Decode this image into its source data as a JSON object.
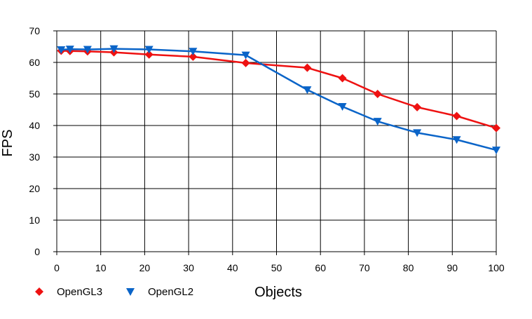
{
  "chart_data": {
    "type": "line",
    "xlabel": "Objects",
    "ylabel": "FPS",
    "xlim": [
      0,
      100
    ],
    "ylim": [
      0,
      70
    ],
    "x_ticks": [
      0,
      10,
      20,
      30,
      40,
      50,
      60,
      70,
      80,
      90,
      100
    ],
    "y_ticks": [
      0,
      10,
      20,
      30,
      40,
      50,
      60,
      70
    ],
    "grid": true,
    "legend_position": "bottom-left",
    "series": [
      {
        "name": "OpenGL3",
        "color": "#ee1111",
        "marker": "diamond",
        "x": [
          1,
          3,
          7,
          13,
          21,
          31,
          43,
          57,
          65,
          73,
          82,
          91,
          100
        ],
        "y": [
          63.7,
          63.6,
          63.5,
          63.2,
          62.5,
          61.8,
          59.8,
          58.3,
          55.0,
          50.0,
          45.8,
          43.0,
          39.2
        ]
      },
      {
        "name": "OpenGL2",
        "color": "#0a64c8",
        "marker": "triangle-down",
        "x": [
          1,
          3,
          7,
          13,
          21,
          31,
          43,
          57,
          65,
          73,
          82,
          91,
          100
        ],
        "y": [
          64.0,
          64.2,
          64.1,
          64.3,
          64.1,
          63.5,
          62.3,
          51.3,
          46.0,
          41.3,
          37.7,
          35.5,
          32.2
        ]
      }
    ]
  }
}
